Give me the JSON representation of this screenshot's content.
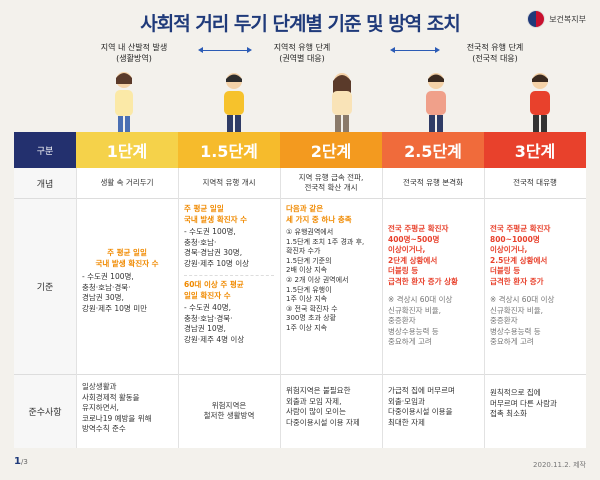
{
  "title": "사회적 거리 두기 단계별 기준 및 방역 조치",
  "logo_text": "보건복지부",
  "phase_labels": {
    "local": "지역 내 산발적 발생\n(생활방역)",
    "regional": "지역적 유행 단계\n(권역별 대응)",
    "national": "전국적 유행 단계\n(전국적 대응)"
  },
  "columns": [
    {
      "label": "구분",
      "color": "#23306e"
    },
    {
      "label": "1단계",
      "color": "#f5d24a"
    },
    {
      "label": "1.5단계",
      "color": "#f6bb2c"
    },
    {
      "label": "2단계",
      "color": "#f39a1f"
    },
    {
      "label": "2.5단계",
      "color": "#f06b3b"
    },
    {
      "label": "3단계",
      "color": "#e8412c"
    }
  ],
  "rows": {
    "concept": {
      "header": "개념",
      "cells": [
        "생활 속 거리두기",
        "지역적 유행 개시",
        "지역 유행 급속 전파,\n전국적 확산 개시",
        "전국적 유행 본격화",
        "전국적 대유행"
      ]
    },
    "criteria": {
      "header": "기준",
      "c1_title": "주 평균 일일\n국내 발생 확진자 수",
      "c1_items": "- 수도권 100명,\n  충청·호남·경북·\n  경남권 30명,\n  강원·제주 10명 미만",
      "c2_title_a": "주 평균 일일\n국내 발생 확진자 수",
      "c2_items_a": "- 수도권 100명,\n  충청·호남·\n  경북·경남권 30명,\n  강원·제주 10명 이상",
      "c2_title_b": "60대 이상 주 평균\n일일 확진자 수",
      "c2_items_b": "- 수도권 40명,\n  충청·호남·경북·\n  경남권 10명,\n  강원·제주 4명 이상",
      "c3_title": "다음과 같은\n세 가지 중 하나 충족",
      "c3_items": "① 유행권역에서\n  1.5단계 조치 1주 경과 후,\n  확진자 수가\n  1.5단계 기준의\n  2배 이상 지속\n② 2개 이상 권역에서\n  1.5단계 유행이\n  1주 이상 지속\n③ 전국 확진자 수\n  300명 초과 상황\n  1주 이상 지속",
      "c4_title": "전국 주평균 확진자\n400명~500명\n이상이거나,\n2단계 상황에서\n더블링 등\n급격한 환자 증가 상황",
      "c4_note": "※ 격상시 60대 이상\n   신규확진자 비율,\n   중증환자\n   병상수용능력 등\n   중요하게 고려",
      "c5_title": "전국 주평균 확진자\n800~1000명\n이상이거나,\n2.5단계 상황에서\n더블링 등\n급격한 환자 증가",
      "c5_note": "※ 격상시 60대 이상\n   신규확진자 비율,\n   중증환자\n   병상수용능력 등\n   중요하게 고려"
    },
    "rules": {
      "header": "준수사항",
      "cells": [
        "일상생활과\n사회경제적 활동을\n유지하면서,\n코로나19 예방을 위해\n방역수칙 준수",
        "위험지역은\n철저한 생활방역",
        "위험지역은 불필요한\n외출과 모임 자제,\n사람이 많이 모이는\n다중이용시설 이용 자제",
        "가급적 집에 머무르며\n외출·모임과\n다중이용시설 이용을\n최대한 자제",
        "원칙적으로 집에\n머무르며 다른 사람과\n접촉 최소화"
      ]
    }
  },
  "footer": {
    "page": "1",
    "total": "/3",
    "date": "2020.11.2. 제작"
  }
}
